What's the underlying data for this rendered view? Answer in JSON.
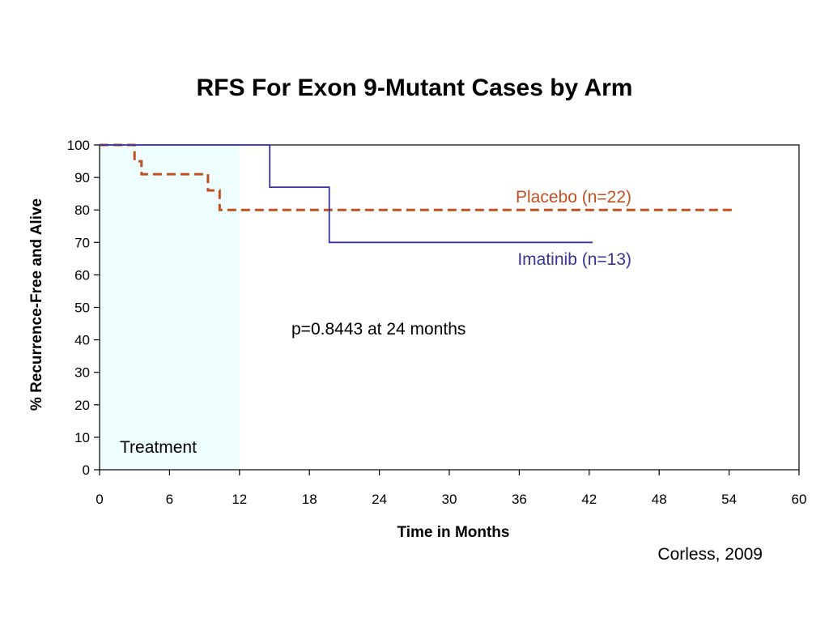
{
  "chart_data": {
    "type": "line",
    "subtype": "kaplan-meier step",
    "title": "RFS For Exon 9-Mutant Cases by Arm",
    "xlabel": "Time in Months",
    "ylabel": "% Recurrence-Free and Alive",
    "xlim": [
      0,
      60
    ],
    "ylim": [
      0,
      100
    ],
    "xticks": [
      "0",
      "6",
      "12",
      "18",
      "24",
      "30",
      "36",
      "42",
      "48",
      "54",
      "60"
    ],
    "yticks": [
      "0",
      "10",
      "20",
      "30",
      "40",
      "50",
      "60",
      "70",
      "80",
      "90",
      "100"
    ],
    "grid": false,
    "treatment_region": {
      "label": "Treatment",
      "x": [
        0,
        12
      ],
      "color": "#eefefe"
    },
    "series": [
      {
        "name": "Placebo (n=22)",
        "color": "#c0501f",
        "style": "dashed",
        "points": [
          [
            0,
            100
          ],
          [
            3,
            100
          ],
          [
            3,
            95
          ],
          [
            3.6,
            95
          ],
          [
            3.6,
            91
          ],
          [
            9.3,
            91
          ],
          [
            9.3,
            86
          ],
          [
            10.3,
            86
          ],
          [
            10.3,
            80
          ],
          [
            54.3,
            80
          ]
        ]
      },
      {
        "name": "Imatinib (n=13)",
        "color": "#34349a",
        "style": "solid",
        "points": [
          [
            0,
            100
          ],
          [
            14.6,
            100
          ],
          [
            14.6,
            87
          ],
          [
            19.7,
            87
          ],
          [
            19.7,
            70
          ],
          [
            42.3,
            70
          ]
        ]
      }
    ],
    "annotations": [
      {
        "text": "p=0.8443 at 24 months"
      }
    ]
  },
  "citation": "Corless, 2009"
}
